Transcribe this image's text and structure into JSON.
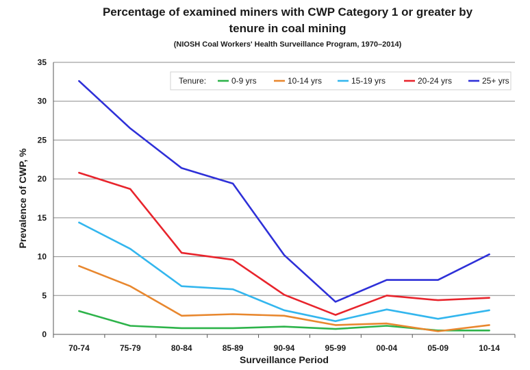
{
  "chart_data": {
    "type": "line",
    "title_line1": "Percentage of examined miners with CWP Category 1 or greater by",
    "title_line2": "tenure in coal mining",
    "subtitle": "(NIOSH Coal Workers' Health Surveillance Program, 1970–2014)",
    "xlabel": "Surveillance Period",
    "ylabel": "Prevalence of CWP, %",
    "categories": [
      "70-74",
      "75-79",
      "80-84",
      "85-89",
      "90-94",
      "95-99",
      "00-04",
      "05-09",
      "10-14"
    ],
    "ylim": [
      0,
      35
    ],
    "yticks": [
      0,
      5,
      10,
      15,
      20,
      25,
      30,
      35
    ],
    "grid": "horizontal",
    "legend_title": "Tenure:",
    "legend_position": "top-right",
    "series": [
      {
        "name": "0-9 yrs",
        "color": "#2db34a",
        "values": [
          3.0,
          1.1,
          0.8,
          0.8,
          1.0,
          0.7,
          1.1,
          0.5,
          0.5
        ]
      },
      {
        "name": "10-14 yrs",
        "color": "#e8872e",
        "values": [
          8.8,
          6.2,
          2.4,
          2.6,
          2.4,
          1.2,
          1.4,
          0.4,
          1.2
        ]
      },
      {
        "name": "15-19 yrs",
        "color": "#33b6ee",
        "values": [
          14.4,
          11.0,
          6.2,
          5.8,
          3.1,
          1.7,
          3.2,
          2.0,
          3.1
        ]
      },
      {
        "name": "20-24 yrs",
        "color": "#e8242c",
        "values": [
          20.8,
          18.7,
          10.5,
          9.6,
          5.1,
          2.5,
          5.0,
          4.4,
          4.7
        ]
      },
      {
        "name": "25+ yrs",
        "color": "#2e30d8",
        "values": [
          32.6,
          26.5,
          21.4,
          19.4,
          10.2,
          4.2,
          7.0,
          7.0,
          10.3
        ]
      }
    ]
  }
}
